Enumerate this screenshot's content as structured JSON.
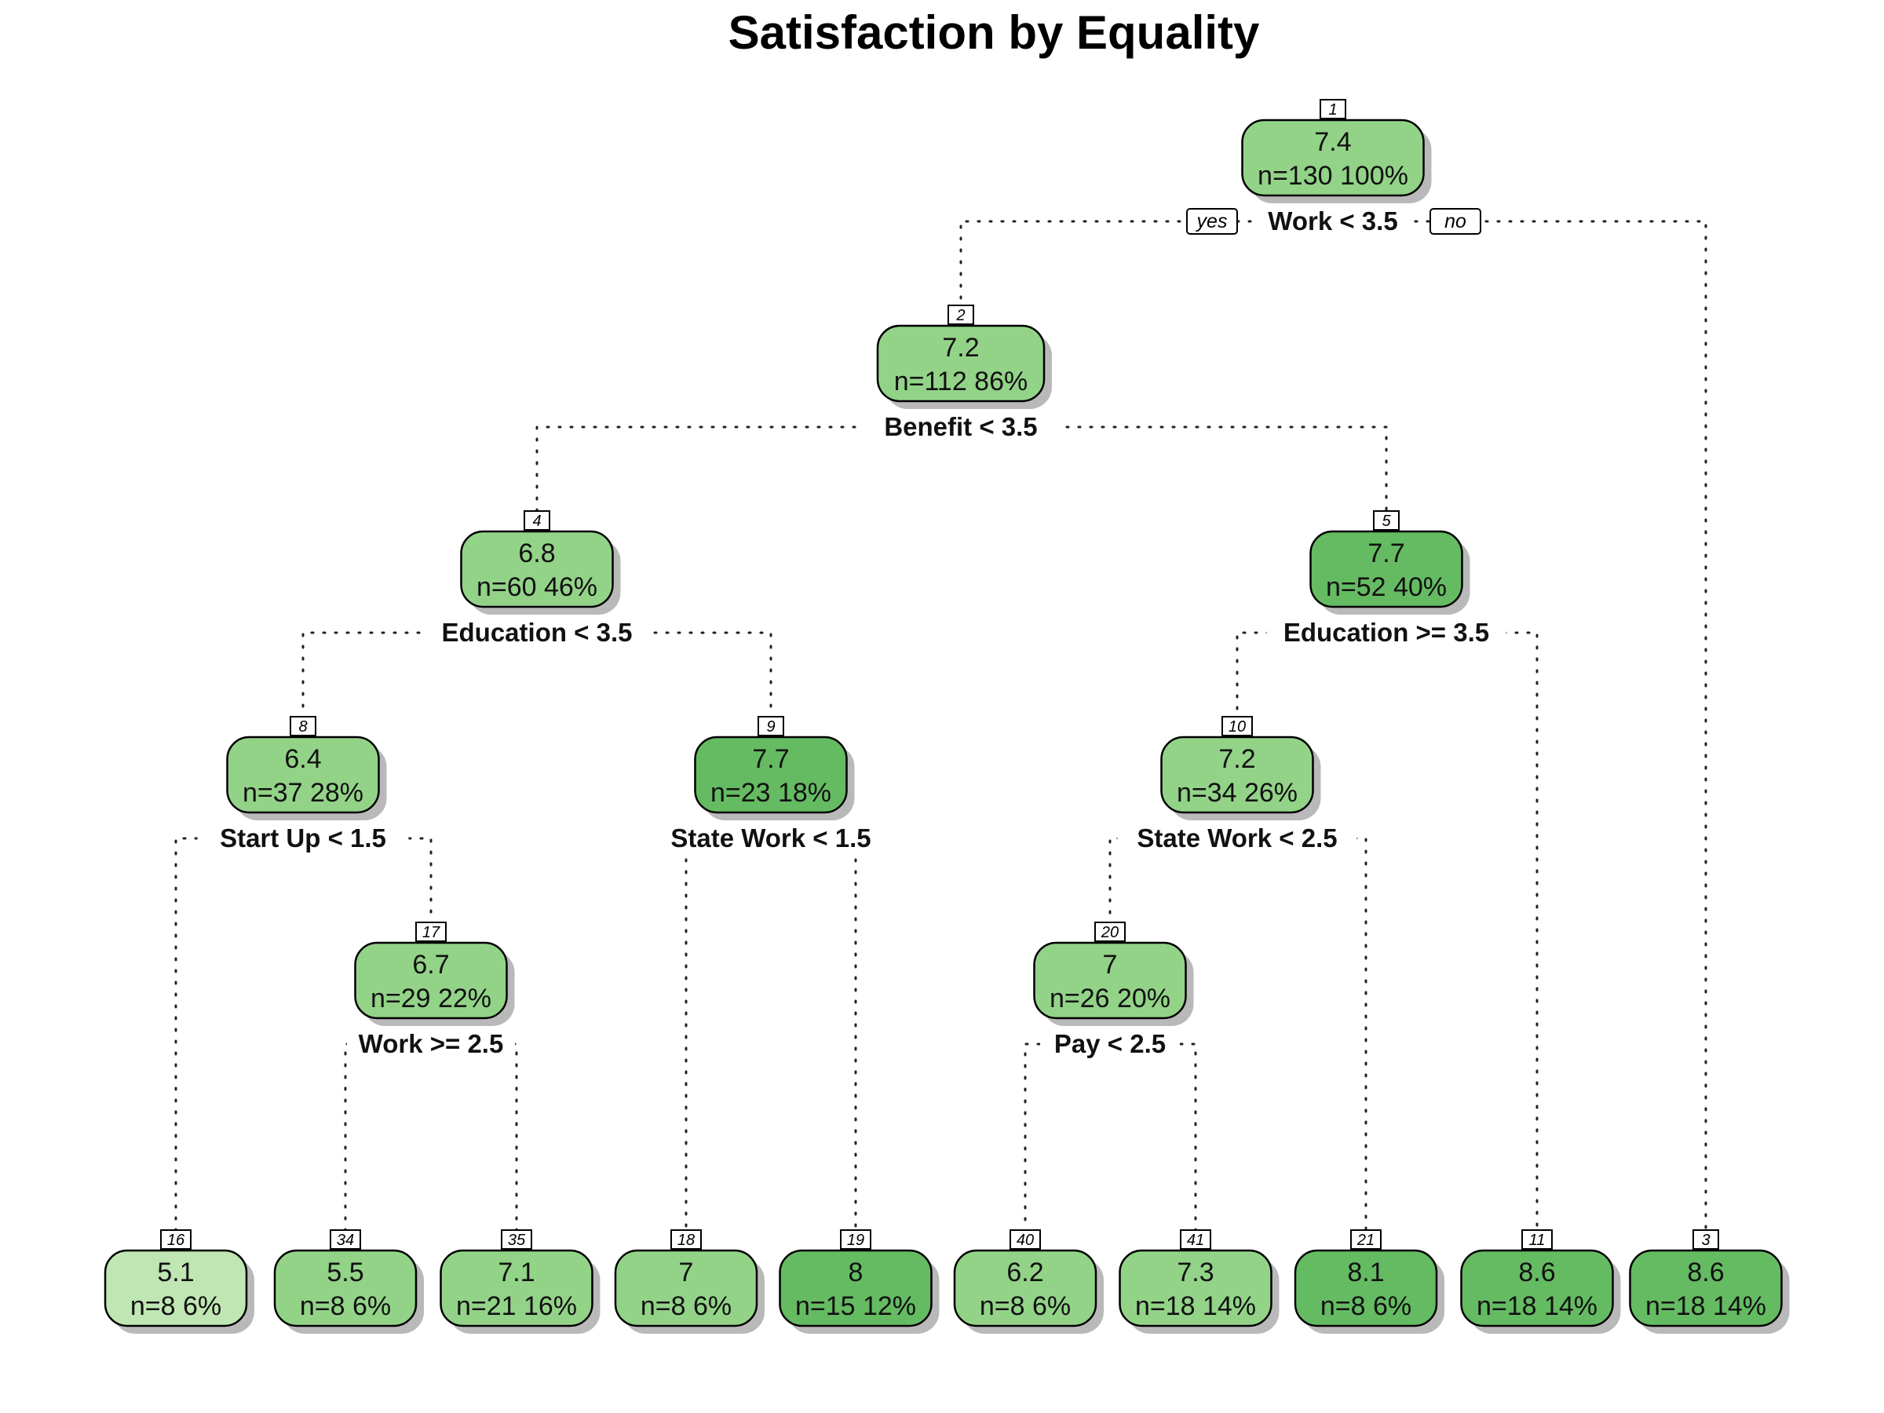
{
  "title": "Satisfaction by Equality",
  "colors": {
    "light": "#bfe6b3",
    "mid": "#93d388",
    "dark": "#65bb62"
  },
  "branch_labels": {
    "yes": "yes",
    "no": "no"
  },
  "nodes": [
    {
      "id": "1",
      "value": "7.4",
      "stats": "n=130  100%",
      "shade": "mid",
      "split": "Work < 3.5"
    },
    {
      "id": "2",
      "value": "7.2",
      "stats": "n=112  86%",
      "shade": "mid",
      "split": "Benefit < 3.5"
    },
    {
      "id": "4",
      "value": "6.8",
      "stats": "n=60  46%",
      "shade": "mid",
      "split": "Education < 3.5"
    },
    {
      "id": "5",
      "value": "7.7",
      "stats": "n=52  40%",
      "shade": "dark",
      "split": "Education >= 3.5"
    },
    {
      "id": "8",
      "value": "6.4",
      "stats": "n=37  28%",
      "shade": "mid",
      "split": "Start Up < 1.5"
    },
    {
      "id": "9",
      "value": "7.7",
      "stats": "n=23  18%",
      "shade": "dark",
      "split": "State Work < 1.5"
    },
    {
      "id": "10",
      "value": "7.2",
      "stats": "n=34  26%",
      "shade": "mid",
      "split": "State Work < 2.5"
    },
    {
      "id": "17",
      "value": "6.7",
      "stats": "n=29  22%",
      "shade": "mid",
      "split": "Work >= 2.5"
    },
    {
      "id": "20",
      "value": "7",
      "stats": "n=26  20%",
      "shade": "mid",
      "split": "Pay < 2.5"
    },
    {
      "id": "16",
      "value": "5.1",
      "stats": "n=8  6%",
      "shade": "light"
    },
    {
      "id": "34",
      "value": "5.5",
      "stats": "n=8  6%",
      "shade": "mid"
    },
    {
      "id": "35",
      "value": "7.1",
      "stats": "n=21  16%",
      "shade": "mid"
    },
    {
      "id": "18",
      "value": "7",
      "stats": "n=8  6%",
      "shade": "mid"
    },
    {
      "id": "19",
      "value": "8",
      "stats": "n=15  12%",
      "shade": "dark"
    },
    {
      "id": "40",
      "value": "6.2",
      "stats": "n=8  6%",
      "shade": "mid"
    },
    {
      "id": "41",
      "value": "7.3",
      "stats": "n=18  14%",
      "shade": "mid"
    },
    {
      "id": "21",
      "value": "8.1",
      "stats": "n=8  6%",
      "shade": "dark"
    },
    {
      "id": "11",
      "value": "8.6",
      "stats": "n=18  14%",
      "shade": "dark"
    },
    {
      "id": "3",
      "value": "8.6",
      "stats": "n=18  14%",
      "shade": "dark"
    }
  ],
  "edges": [
    [
      "1",
      "2"
    ],
    [
      "1",
      "3"
    ],
    [
      "2",
      "4"
    ],
    [
      "2",
      "5"
    ],
    [
      "4",
      "8"
    ],
    [
      "4",
      "9"
    ],
    [
      "5",
      "10"
    ],
    [
      "5",
      "11"
    ],
    [
      "8",
      "16"
    ],
    [
      "8",
      "17"
    ],
    [
      "9",
      "18"
    ],
    [
      "9",
      "19"
    ],
    [
      "10",
      "20"
    ],
    [
      "10",
      "21"
    ],
    [
      "17",
      "34"
    ],
    [
      "17",
      "35"
    ],
    [
      "20",
      "40"
    ],
    [
      "20",
      "41"
    ]
  ]
}
